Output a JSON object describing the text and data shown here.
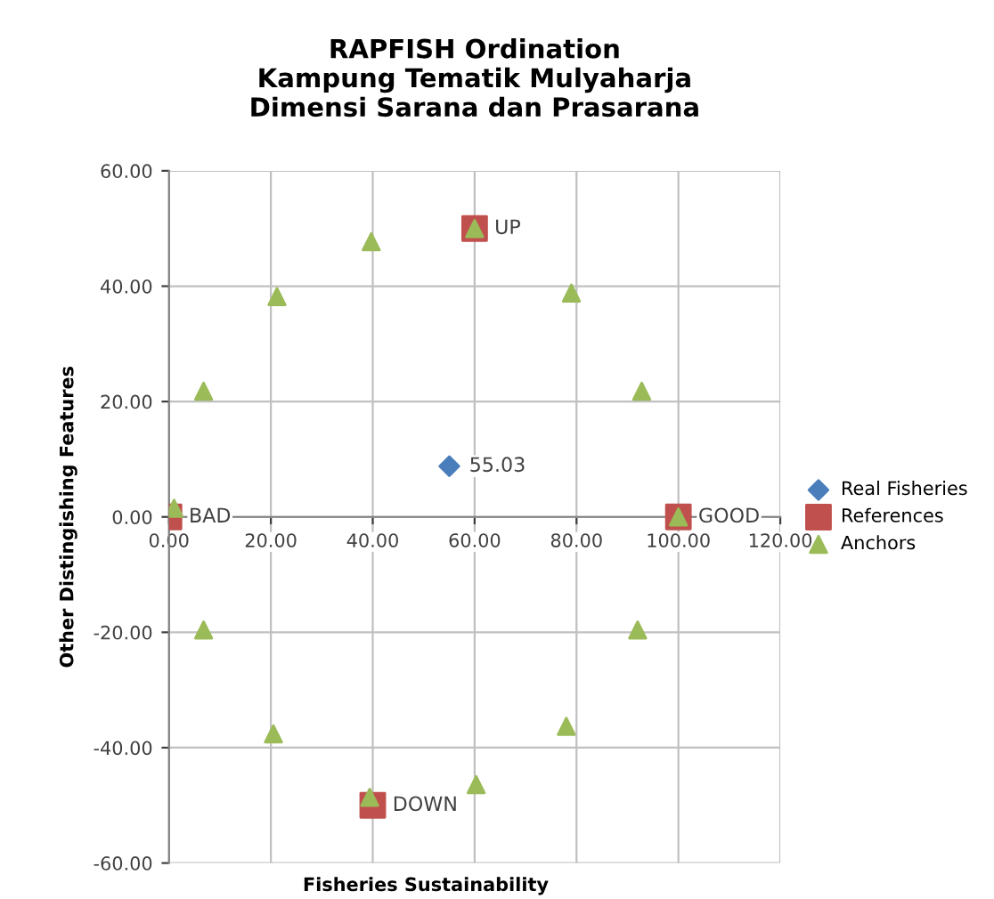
{
  "chart_data": {
    "type": "scatter",
    "title": "RAPFISH Ordination\nKampung Tematik Mulyaharja\nDimensi Sarana dan Prasarana",
    "xlabel": "Fisheries Sustainability",
    "ylabel": "Other Distingishing Features",
    "series": [
      {
        "name": "Real Fisheries",
        "color": "#4a7ebb",
        "marker": "diamond",
        "x": [
          55.03
        ],
        "values": [
          8.8
        ]
      },
      {
        "name": "References",
        "color": "#c0504d",
        "marker": "square",
        "x": [
          0,
          100,
          60,
          40
        ],
        "values": [
          0,
          0,
          50,
          -50
        ]
      },
      {
        "name": "Anchors",
        "color": "#9bbb59",
        "marker": "triangle",
        "x": [
          1,
          6.8,
          21.2,
          39.7,
          60,
          79,
          92.8,
          100,
          6.8,
          20.5,
          39.4,
          60.3,
          78,
          92
        ],
        "values": [
          1.5,
          21.8,
          38.2,
          47.7,
          50,
          38.8,
          21.8,
          0,
          -19.6,
          -37.6,
          -48.6,
          -46.4,
          -36.3,
          -19.6
        ]
      }
    ],
    "annotations": [
      {
        "text": "55.03",
        "x": 55.03,
        "y": 8.8
      },
      {
        "text": "BAD",
        "x": 0,
        "y": 0
      },
      {
        "text": "GOOD",
        "x": 100,
        "y": 0
      },
      {
        "text": "UP",
        "x": 60,
        "y": 50
      },
      {
        "text": "DOWN",
        "x": 40,
        "y": -50
      }
    ],
    "xlim": [
      0,
      120
    ],
    "xticks": [
      {
        "value": 0,
        "label": "0.00"
      },
      {
        "value": 20,
        "label": "20.00"
      },
      {
        "value": 40,
        "label": "40.00"
      },
      {
        "value": 60,
        "label": "60.00"
      },
      {
        "value": 80,
        "label": "80.00"
      },
      {
        "value": 100,
        "label": "100.00"
      },
      {
        "value": 120,
        "label": "120.00"
      }
    ],
    "ylim": [
      -60,
      60
    ],
    "yticks": [
      {
        "value": -60,
        "label": "-60.00"
      },
      {
        "value": -40,
        "label": "-40.00"
      },
      {
        "value": -20,
        "label": "-20.00"
      },
      {
        "value": 0,
        "label": "0.00"
      },
      {
        "value": 20,
        "label": "20.00"
      },
      {
        "value": 40,
        "label": "40.00"
      },
      {
        "value": 60,
        "label": "60.00"
      }
    ],
    "grid": true,
    "legend": "right"
  }
}
